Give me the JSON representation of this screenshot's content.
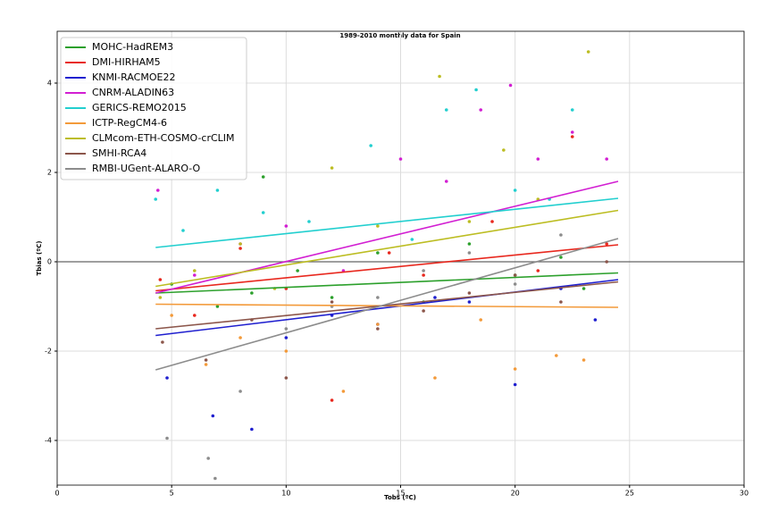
{
  "chart_data": {
    "type": "scatter",
    "title": "1989-2010 monthly data for Spain",
    "x_label": "Tobs (ºC)",
    "y_label": "Tbias (ºC)",
    "xlim": [
      0,
      30
    ],
    "ylim": [
      -5,
      5.16
    ],
    "xticks": [
      0,
      5,
      10,
      15,
      20,
      25,
      30
    ],
    "yticks": [
      -4,
      -2,
      0,
      2,
      4
    ],
    "grid": true,
    "hline": 0,
    "legend": "upper left",
    "series": [
      {
        "name": "MOHC-HadREM3",
        "color": "#2ca02c",
        "x": [
          5,
          7,
          9,
          10.5,
          12,
          14,
          16,
          18,
          20,
          22,
          23,
          8.5
        ],
        "values": [
          -0.5,
          -1.0,
          1.9,
          -0.2,
          -0.8,
          0.2,
          -0.9,
          0.4,
          -0.3,
          0.1,
          -0.6,
          -0.7
        ],
        "trend_x": [
          4.3,
          24.5
        ],
        "trend_values": [
          -0.7,
          -0.25
        ]
      },
      {
        "name": "DMI-HIRHAM5",
        "color": "#e8281e",
        "x": [
          4.5,
          6,
          8,
          10,
          12,
          14.5,
          16,
          19,
          21,
          22.5,
          24
        ],
        "values": [
          -0.4,
          -1.2,
          0.3,
          -0.6,
          -3.1,
          0.2,
          -0.3,
          0.9,
          -0.2,
          2.8,
          0.4
        ],
        "trend_x": [
          4.3,
          24.5
        ],
        "trend_values": [
          -0.65,
          0.38
        ]
      },
      {
        "name": "KNMI-RACMOE22",
        "color": "#1f1fcf",
        "x": [
          4.8,
          6.8,
          8.5,
          10,
          12,
          14,
          16.5,
          18,
          20,
          22,
          23.5
        ],
        "values": [
          -2.6,
          -3.45,
          -3.75,
          -1.7,
          -1.2,
          -1.4,
          -0.8,
          -0.9,
          -2.75,
          -0.6,
          -1.3
        ],
        "trend_x": [
          4.3,
          24.5
        ],
        "trend_values": [
          -1.65,
          -0.4
        ]
      },
      {
        "name": "CNRM-ALADIN63",
        "color": "#d21fd2",
        "x": [
          4.4,
          6,
          8,
          10,
          12.5,
          15,
          17,
          18.5,
          19.8,
          21,
          22.5,
          24
        ],
        "values": [
          1.6,
          -0.3,
          0.4,
          0.8,
          -0.2,
          2.3,
          1.8,
          3.4,
          3.95,
          2.3,
          2.9,
          2.3
        ],
        "trend_x": [
          4.3,
          24.5
        ],
        "trend_values": [
          -0.7,
          1.8
        ]
      },
      {
        "name": "GERICS-REMO2015",
        "color": "#22cfcf",
        "x": [
          4.3,
          5.5,
          7,
          9,
          11,
          13.7,
          15.5,
          17,
          18.3,
          20,
          21.5,
          22.5
        ],
        "values": [
          1.4,
          0.7,
          1.6,
          1.1,
          0.9,
          2.6,
          0.5,
          3.4,
          3.85,
          1.6,
          1.4,
          3.4
        ],
        "trend_x": [
          4.3,
          24.5
        ],
        "trend_values": [
          0.32,
          1.42
        ]
      },
      {
        "name": "ICTP-RegCM4-6",
        "color": "#f39a3a",
        "x": [
          5,
          6.5,
          8,
          10,
          12.5,
          14,
          16.5,
          18.5,
          20,
          21.8,
          23
        ],
        "values": [
          -1.2,
          -2.3,
          -1.7,
          -2.0,
          -2.9,
          -1.4,
          -2.6,
          -1.3,
          -2.4,
          -2.1,
          -2.2
        ],
        "trend_x": [
          4.3,
          24.5
        ],
        "trend_values": [
          -0.95,
          -1.02
        ]
      },
      {
        "name": "CLMcom-ETH-COSMO-crCLIM",
        "color": "#bcbd22",
        "x": [
          4.5,
          6,
          8,
          9.5,
          12,
          14,
          16.7,
          18,
          19.5,
          21,
          23.2
        ],
        "values": [
          -0.8,
          -0.2,
          0.4,
          -0.6,
          2.1,
          0.8,
          4.15,
          0.9,
          2.5,
          1.4,
          4.7
        ],
        "trend_x": [
          4.3,
          24.5
        ],
        "trend_values": [
          -0.55,
          1.15
        ]
      },
      {
        "name": "SMHI-RCA4",
        "color": "#8c564b",
        "x": [
          4.6,
          6.5,
          8.5,
          10,
          12,
          14,
          16,
          18,
          20,
          22,
          24
        ],
        "values": [
          -1.8,
          -2.2,
          -1.3,
          -2.6,
          -0.9,
          -1.5,
          -1.1,
          -0.7,
          -0.3,
          -0.9,
          0.0
        ],
        "trend_x": [
          4.3,
          24.5
        ],
        "trend_values": [
          -1.5,
          -0.45
        ]
      },
      {
        "name": "RMBI-UGent-ALARO-O",
        "color": "#8c8c8c",
        "x": [
          4.8,
          6.6,
          6.9,
          8,
          10,
          12,
          14,
          16,
          18,
          20,
          22
        ],
        "values": [
          -3.95,
          -4.4,
          -4.85,
          -2.9,
          -1.5,
          -1.0,
          -0.8,
          -0.2,
          0.2,
          -0.5,
          0.6
        ],
        "trend_x": [
          4.3,
          24.5
        ],
        "trend_values": [
          -2.42,
          0.52
        ]
      }
    ]
  }
}
